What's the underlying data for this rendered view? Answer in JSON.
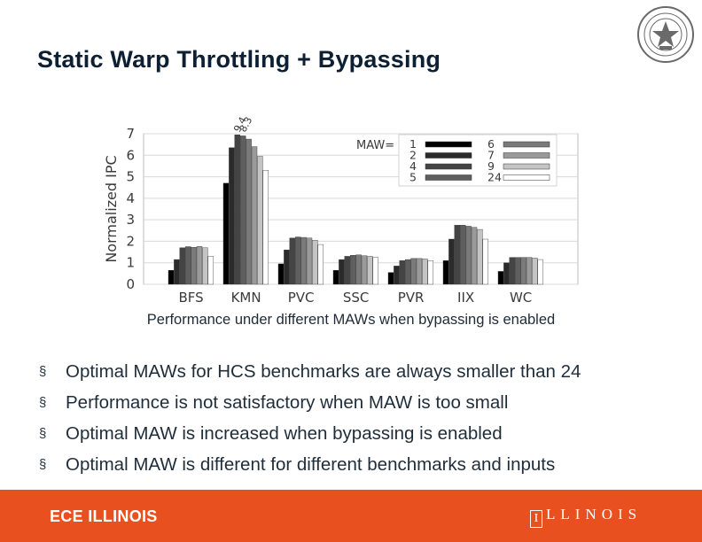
{
  "slide": {
    "title": "Static Warp Throttling + Bypassing"
  },
  "chart_data": {
    "type": "bar",
    "ylabel": "Normalized IPC",
    "ylim": [
      0,
      7
    ],
    "yticks": [
      "0",
      "1",
      "2",
      "3",
      "4",
      "5",
      "6",
      "7"
    ],
    "categories": [
      "BFS",
      "KMN",
      "PVC",
      "SSC",
      "PVR",
      "IIX",
      "WC"
    ],
    "legend_title": "MAW=",
    "series": [
      {
        "name": "1",
        "color": "#000000",
        "values": [
          0.65,
          4.7,
          0.95,
          0.65,
          0.55,
          1.1,
          0.6
        ]
      },
      {
        "name": "2",
        "color": "#2b2b2b",
        "values": [
          1.15,
          6.35,
          1.6,
          1.15,
          0.85,
          2.1,
          1.0
        ]
      },
      {
        "name": "4",
        "color": "#444444",
        "values": [
          1.7,
          6.95,
          2.15,
          1.3,
          1.1,
          2.75,
          1.25
        ]
      },
      {
        "name": "5",
        "color": "#5f5f5f",
        "values": [
          1.75,
          6.9,
          2.2,
          1.35,
          1.15,
          2.75,
          1.25
        ]
      },
      {
        "name": "6",
        "color": "#7a7a7a",
        "values": [
          1.72,
          6.75,
          2.18,
          1.37,
          1.2,
          2.7,
          1.25
        ]
      },
      {
        "name": "7",
        "color": "#9a9a9a",
        "values": [
          1.76,
          6.4,
          2.15,
          1.33,
          1.2,
          2.65,
          1.25
        ]
      },
      {
        "name": "9",
        "color": "#c4c4c4",
        "values": [
          1.7,
          5.95,
          2.05,
          1.3,
          1.18,
          2.55,
          1.22
        ]
      },
      {
        "name": "24",
        "color": "#ffffff",
        "values": [
          1.3,
          5.3,
          1.85,
          1.25,
          1.1,
          2.1,
          1.15
        ]
      }
    ],
    "annotations": [
      "9.4",
      "8.3"
    ],
    "caption": "Performance under different MAWs when bypassing is enabled"
  },
  "bullets": [
    "Optimal MAWs for HCS benchmarks are always smaller than 24",
    "Performance is not satisfactory when MAW is too small",
    "Optimal MAW is increased when bypassing is enabled",
    "Optimal MAW is different for different benchmarks and inputs"
  ],
  "bullet_marker": "§",
  "footer": {
    "left": "ECE ILLINOIS",
    "right_box": "I",
    "right_text": "LLINOIS"
  }
}
